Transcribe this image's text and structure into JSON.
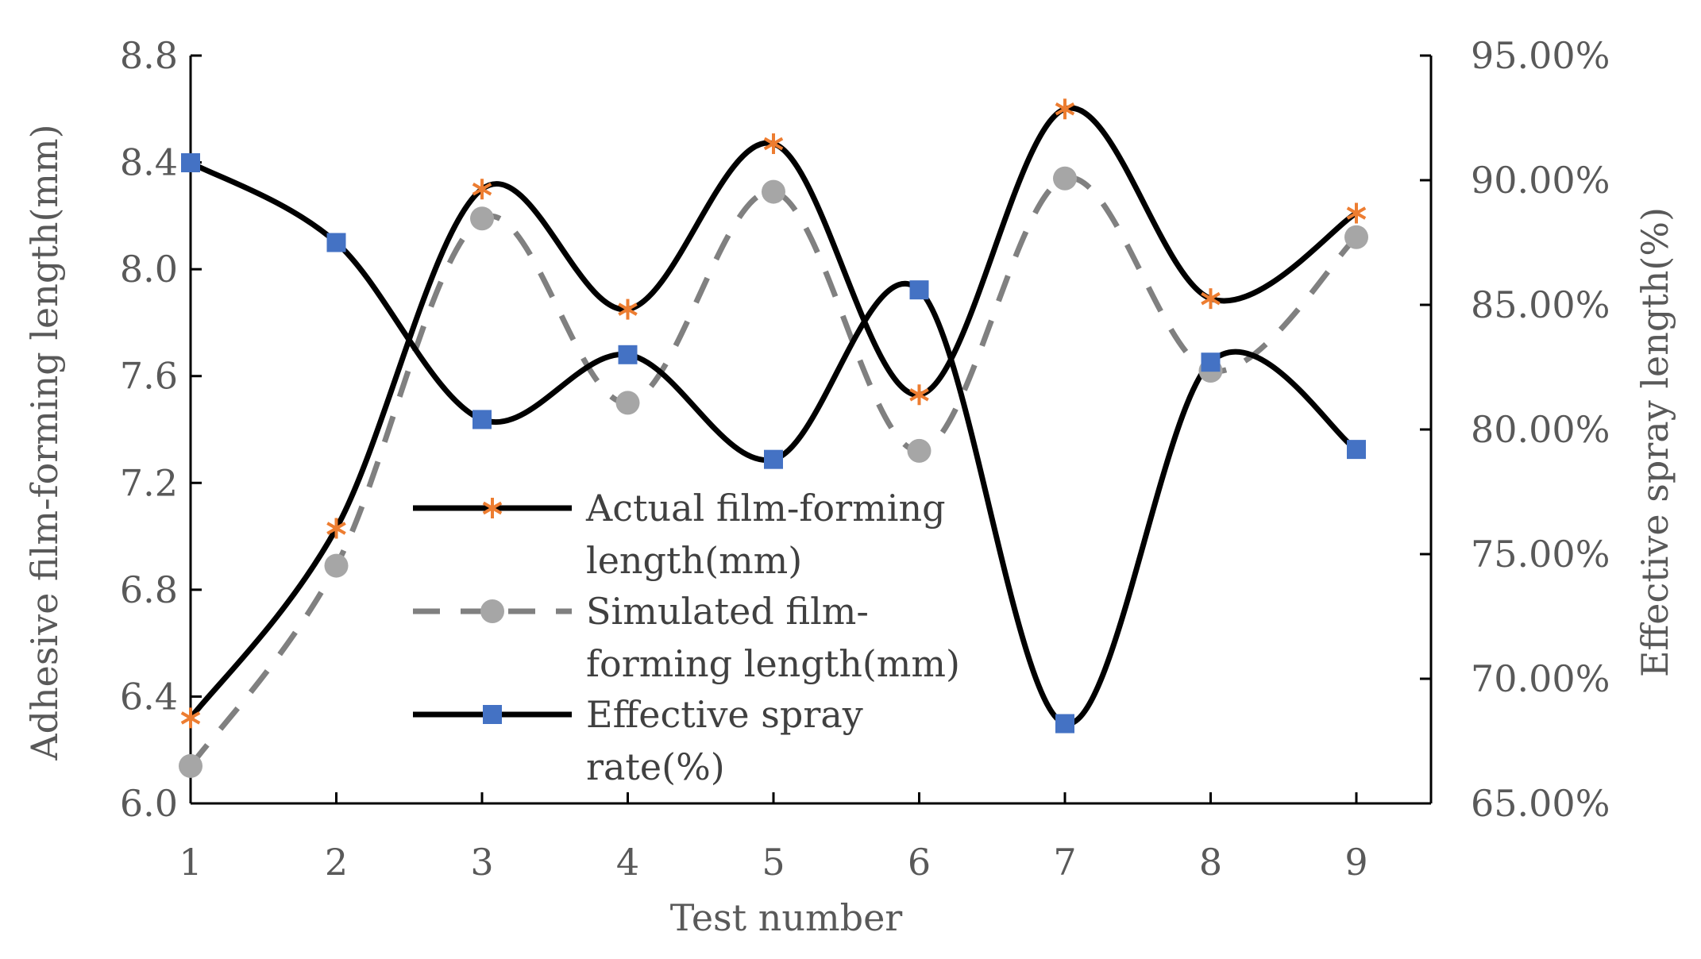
{
  "chart_data": {
    "type": "line",
    "xlabel": "Test number",
    "ylabel_left": "Adhesive film-forming length(mm)",
    "ylabel_right": "Effective spray length(%)",
    "x": [
      1,
      2,
      3,
      4,
      5,
      6,
      7,
      8,
      9
    ],
    "x_tick_labels": [
      "1",
      "2",
      "3",
      "4",
      "5",
      "6",
      "7",
      "8",
      "9"
    ],
    "ylim_left": [
      6.0,
      8.8
    ],
    "left_ticks": [
      6.0,
      6.4,
      6.8,
      7.2,
      7.6,
      8.0,
      8.4,
      8.8
    ],
    "left_tick_labels": [
      "6.0",
      "6.4",
      "6.8",
      "7.2",
      "7.6",
      "8.0",
      "8.4",
      "8.8"
    ],
    "ylim_right": [
      65,
      95
    ],
    "right_ticks": [
      65,
      70,
      75,
      80,
      85,
      90,
      95
    ],
    "right_tick_labels": [
      "65.00%",
      "70.00%",
      "75.00%",
      "80.00%",
      "85.00%",
      "90.00%",
      "95.00%"
    ],
    "grid": false,
    "legend_position": "center-left",
    "series": [
      {
        "name": "Actual film-forming length(mm)",
        "axis": "left",
        "values": [
          6.32,
          7.03,
          8.3,
          7.85,
          8.47,
          7.53,
          8.6,
          7.89,
          8.21
        ],
        "line_color": "#000000",
        "marker_color": "#ED7D31",
        "marker": "asterisk",
        "dash": "solid"
      },
      {
        "name": "Simulated film-forming length(mm)",
        "axis": "left",
        "values": [
          6.14,
          6.89,
          8.19,
          7.5,
          8.29,
          7.32,
          8.34,
          7.62,
          8.12
        ],
        "line_color": "#808080",
        "marker_color": "#A6A6A6",
        "marker": "circle",
        "dash": "dashed"
      },
      {
        "name": "Effective spray rate(%)",
        "axis": "right",
        "values": [
          90.7,
          87.5,
          80.4,
          83.0,
          78.8,
          85.6,
          68.2,
          82.7,
          79.2
        ],
        "line_color": "#000000",
        "marker_color": "#4472C4",
        "marker": "square",
        "dash": "solid"
      }
    ],
    "legend": [
      {
        "lines": [
          "Actual film-forming",
          "length(mm)"
        ]
      },
      {
        "lines": [
          "Simulated film-",
          "forming length(mm)"
        ]
      },
      {
        "lines": [
          "Effective spray",
          "rate(%)"
        ]
      }
    ]
  }
}
